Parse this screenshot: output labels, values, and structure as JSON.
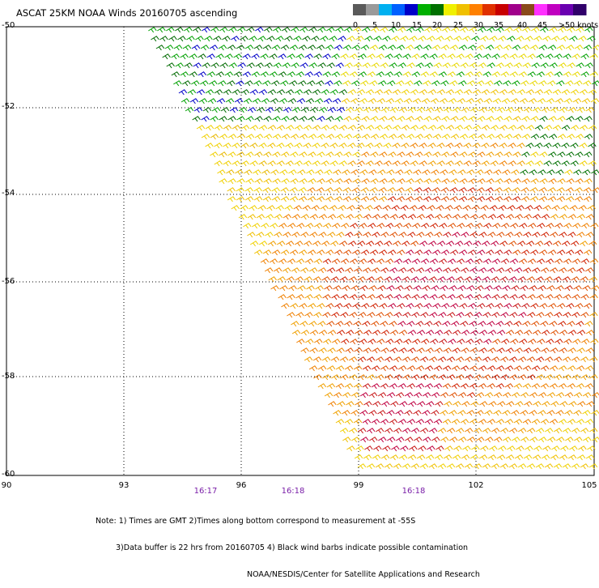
{
  "title": "ASCAT 25KM NOAA Winds 20160705 ascending",
  "legend": {
    "colors": [
      "#5a5a5a",
      "#9a9a9a",
      "#00b0f0",
      "#0060ff",
      "#0000c8",
      "#00b000",
      "#007000",
      "#f0f000",
      "#f0c000",
      "#ff8000",
      "#e03000",
      "#c80000",
      "#a0008a",
      "#8a4a1a",
      "#ff30ff",
      "#c000c0",
      "#6a00b0",
      "#30006a"
    ],
    "labels": [
      "0",
      "5",
      "10",
      "15",
      "20",
      "25",
      "30",
      "35",
      "40",
      "45",
      ">50 knots"
    ]
  },
  "axes": {
    "lat_labels": [
      "-50",
      "-52",
      "-54",
      "-56",
      "-58",
      "-60"
    ],
    "lon_labels": [
      "90",
      "93",
      "96",
      "99",
      "102",
      "105"
    ],
    "time_labels": [
      "16:17",
      "16:18",
      "16:18"
    ]
  },
  "notes": [
    "Note: 1) Times are GMT 2)Times along bottom correspond to measurement at -55S",
    "3)Data buffer is 22 hrs from 20160705 4) Black wind barbs indicate possible contamination",
    "NOAA/NESDIS/Center for Satellite Applications and Research"
  ]
}
